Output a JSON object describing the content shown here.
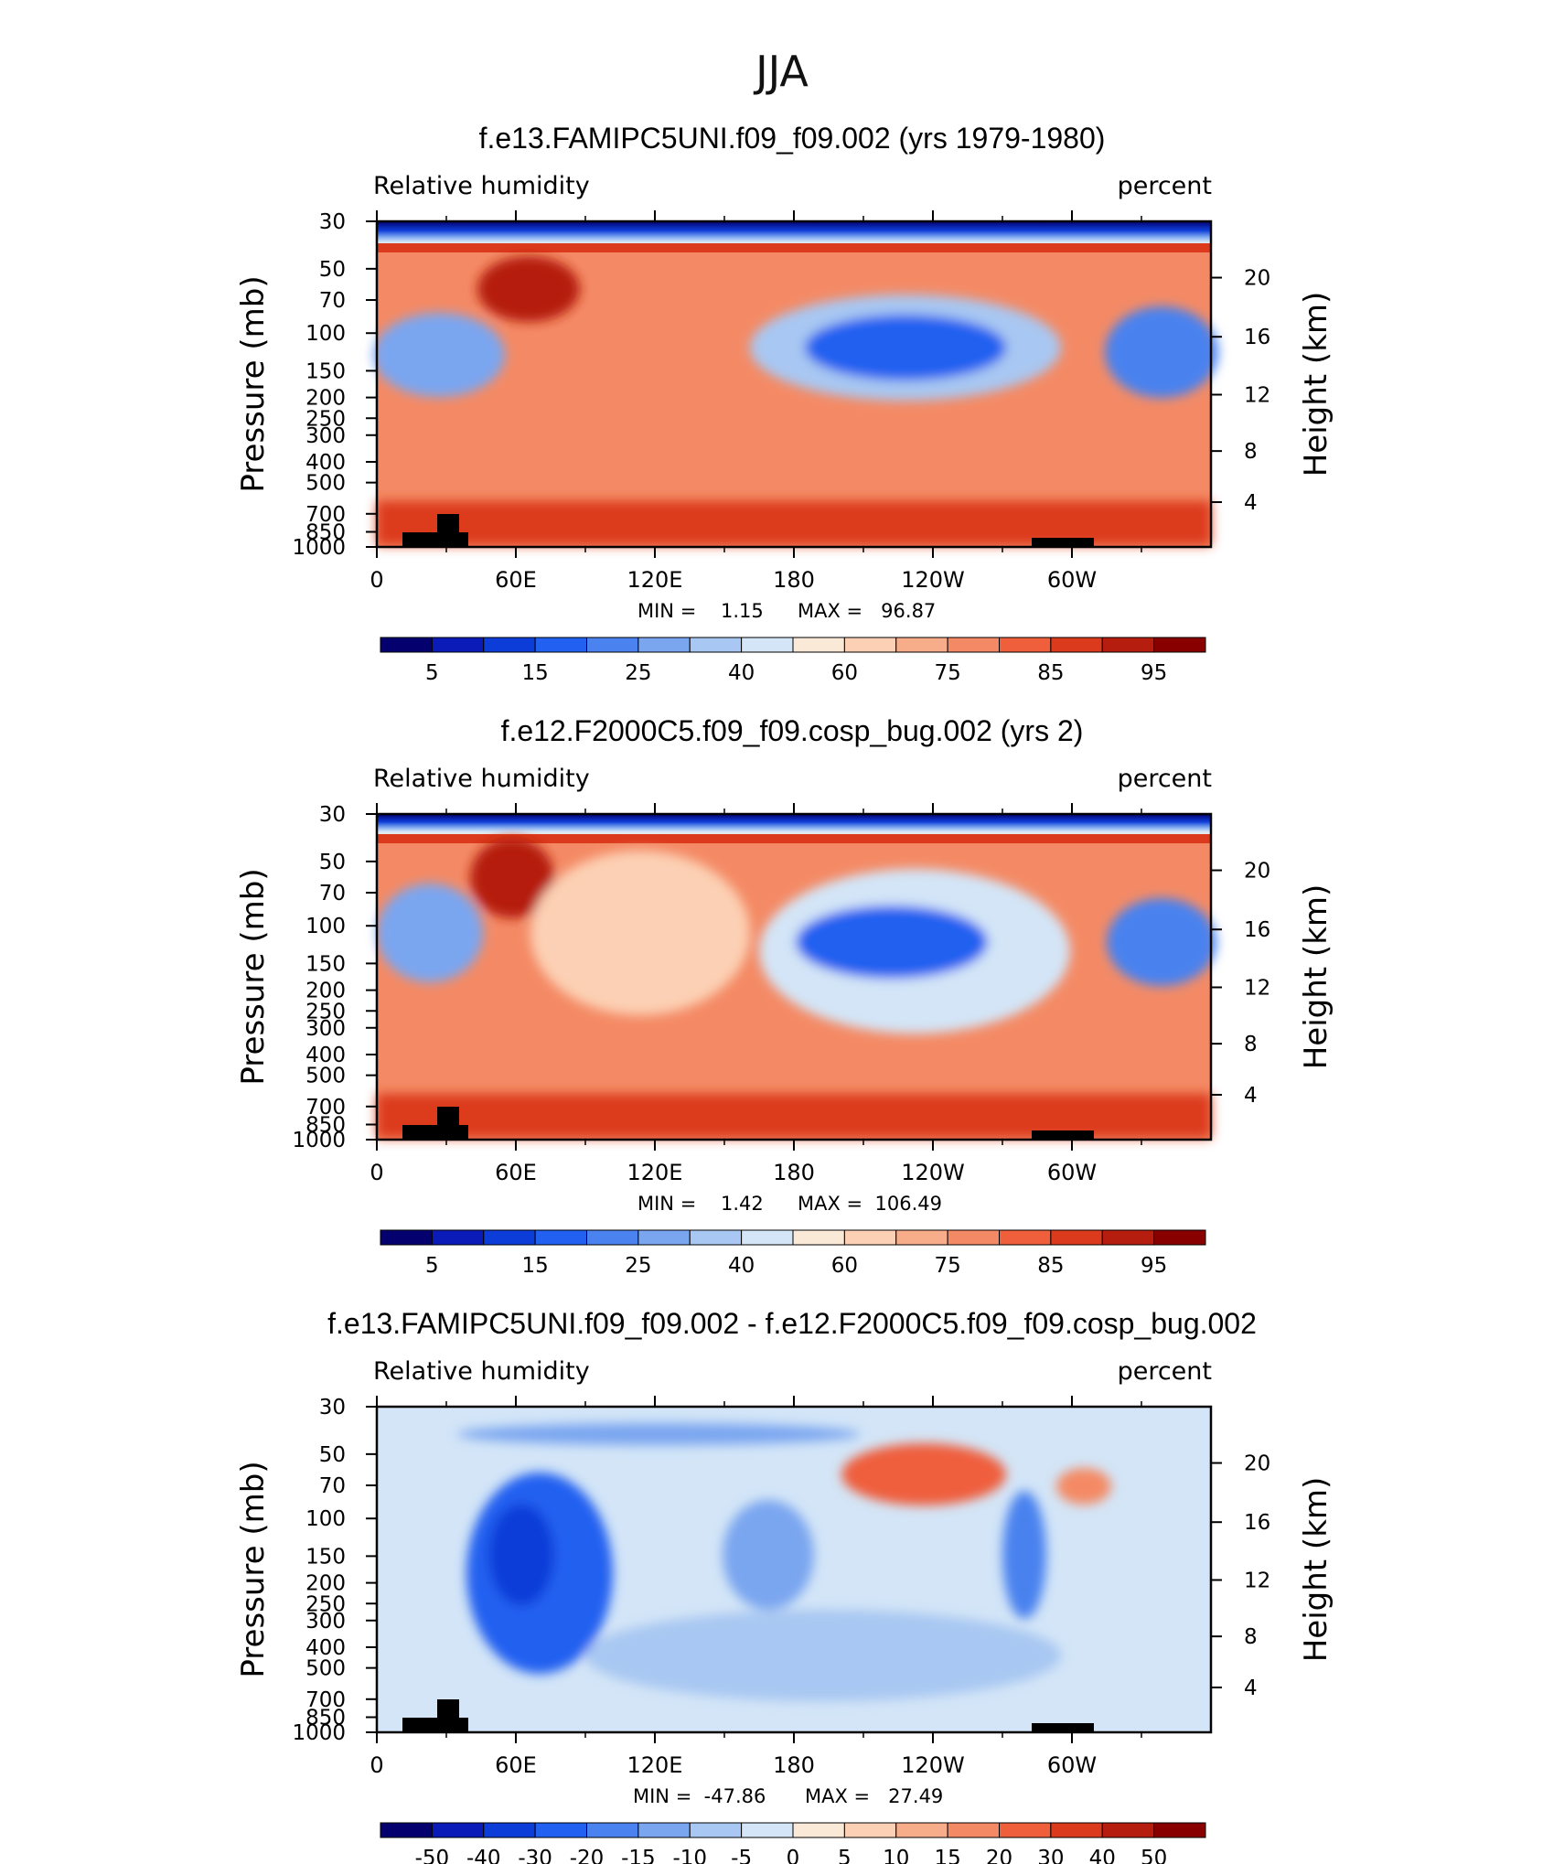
{
  "chart_data": {
    "season_title": "JJA",
    "x_tick_labels": [
      "0",
      "60E",
      "120E",
      "180",
      "120W",
      "60W"
    ],
    "x_ticks_deg": [
      0,
      60,
      120,
      180,
      240,
      300
    ],
    "x_minor_ticks_deg": [
      30,
      90,
      150,
      210,
      270,
      330
    ],
    "x_range_deg": [
      0,
      360
    ],
    "pressure_ticks": [
      {
        "label": "30",
        "p": 30
      },
      {
        "label": "50",
        "p": 50
      },
      {
        "label": "70",
        "p": 70
      },
      {
        "label": "100",
        "p": 100
      },
      {
        "label": "150",
        "p": 150
      },
      {
        "label": "200",
        "p": 200
      },
      {
        "label": "250",
        "p": 250
      },
      {
        "label": "300",
        "p": 300
      },
      {
        "label": "400",
        "p": 400
      },
      {
        "label": "500",
        "p": 500
      },
      {
        "label": "700",
        "p": 700
      },
      {
        "label": "850",
        "p": 850
      },
      {
        "label": "1000",
        "p": 1000
      }
    ],
    "pressure_range_mb": [
      30,
      1000
    ],
    "height_ticks": [
      {
        "label": "20",
        "p": 55
      },
      {
        "label": "16",
        "p": 104
      },
      {
        "label": "12",
        "p": 194
      },
      {
        "label": "8",
        "p": 356
      },
      {
        "label": "4",
        "p": 617
      }
    ],
    "y_label": "Pressure (mb)",
    "y2_label": "Height (km)",
    "panels": [
      {
        "type": "heatmap",
        "title": "f.e13.FAMIPC5UNI.f09_f09.002 (yrs 1979-1980)",
        "left_label": "Relative humidity",
        "right_label": "percent",
        "min_text": "MIN =    1.15",
        "max_text": "MAX =   96.87",
        "min": 1.15,
        "max": 96.87,
        "colorbar_labels": [
          "5",
          "15",
          "25",
          "40",
          "60",
          "75",
          "85",
          "95"
        ],
        "colors": [
          "#04016e",
          "#0a1bb8",
          "#0d3dd8",
          "#2160f0",
          "#4a82ef",
          "#7aa6f0",
          "#a8c7f2",
          "#d3e5f7",
          "#fbe9d8",
          "#fcd0b4",
          "#f8ad8a",
          "#f48a65",
          "#ef5f3c",
          "#dc3a1c",
          "#b51d0e",
          "#880000"
        ],
        "palette": "seq"
      },
      {
        "type": "heatmap",
        "title": "f.e12.F2000C5.f09_f09.cosp_bug.002 (yrs 2)",
        "left_label": "Relative humidity",
        "right_label": "percent",
        "min_text": "MIN =    1.42",
        "max_text": "MAX =  106.49",
        "min": 1.42,
        "max": 106.49,
        "colorbar_labels": [
          "5",
          "15",
          "25",
          "40",
          "60",
          "75",
          "85",
          "95"
        ],
        "colors": [
          "#04016e",
          "#0a1bb8",
          "#0d3dd8",
          "#2160f0",
          "#4a82ef",
          "#7aa6f0",
          "#a8c7f2",
          "#d3e5f7",
          "#fbe9d8",
          "#fcd0b4",
          "#f8ad8a",
          "#f48a65",
          "#ef5f3c",
          "#dc3a1c",
          "#b51d0e",
          "#880000"
        ],
        "palette": "seq"
      },
      {
        "type": "heatmap",
        "title": "f.e13.FAMIPC5UNI.f09_f09.002 - f.e12.F2000C5.f09_f09.cosp_bug.002",
        "left_label": "Relative humidity",
        "right_label": "percent",
        "min_text": "MIN =  -47.86",
        "max_text": "MAX =   27.49",
        "min": -47.86,
        "max": 27.49,
        "colorbar_labels": [
          "-50",
          "-40",
          "-30",
          "-20",
          "-15",
          "-10",
          "-5",
          "0",
          "5",
          "10",
          "15",
          "20",
          "30",
          "40",
          "50"
        ],
        "colors": [
          "#04016e",
          "#0a1bb8",
          "#0d3dd8",
          "#2160f0",
          "#4a82ef",
          "#7aa6f0",
          "#a8c7f2",
          "#d3e5f7",
          "#fbe9d8",
          "#fcd0b4",
          "#f8ad8a",
          "#f48a65",
          "#ef5f3c",
          "#dc3a1c",
          "#b51d0e",
          "#880000"
        ],
        "palette": "diff"
      }
    ]
  }
}
